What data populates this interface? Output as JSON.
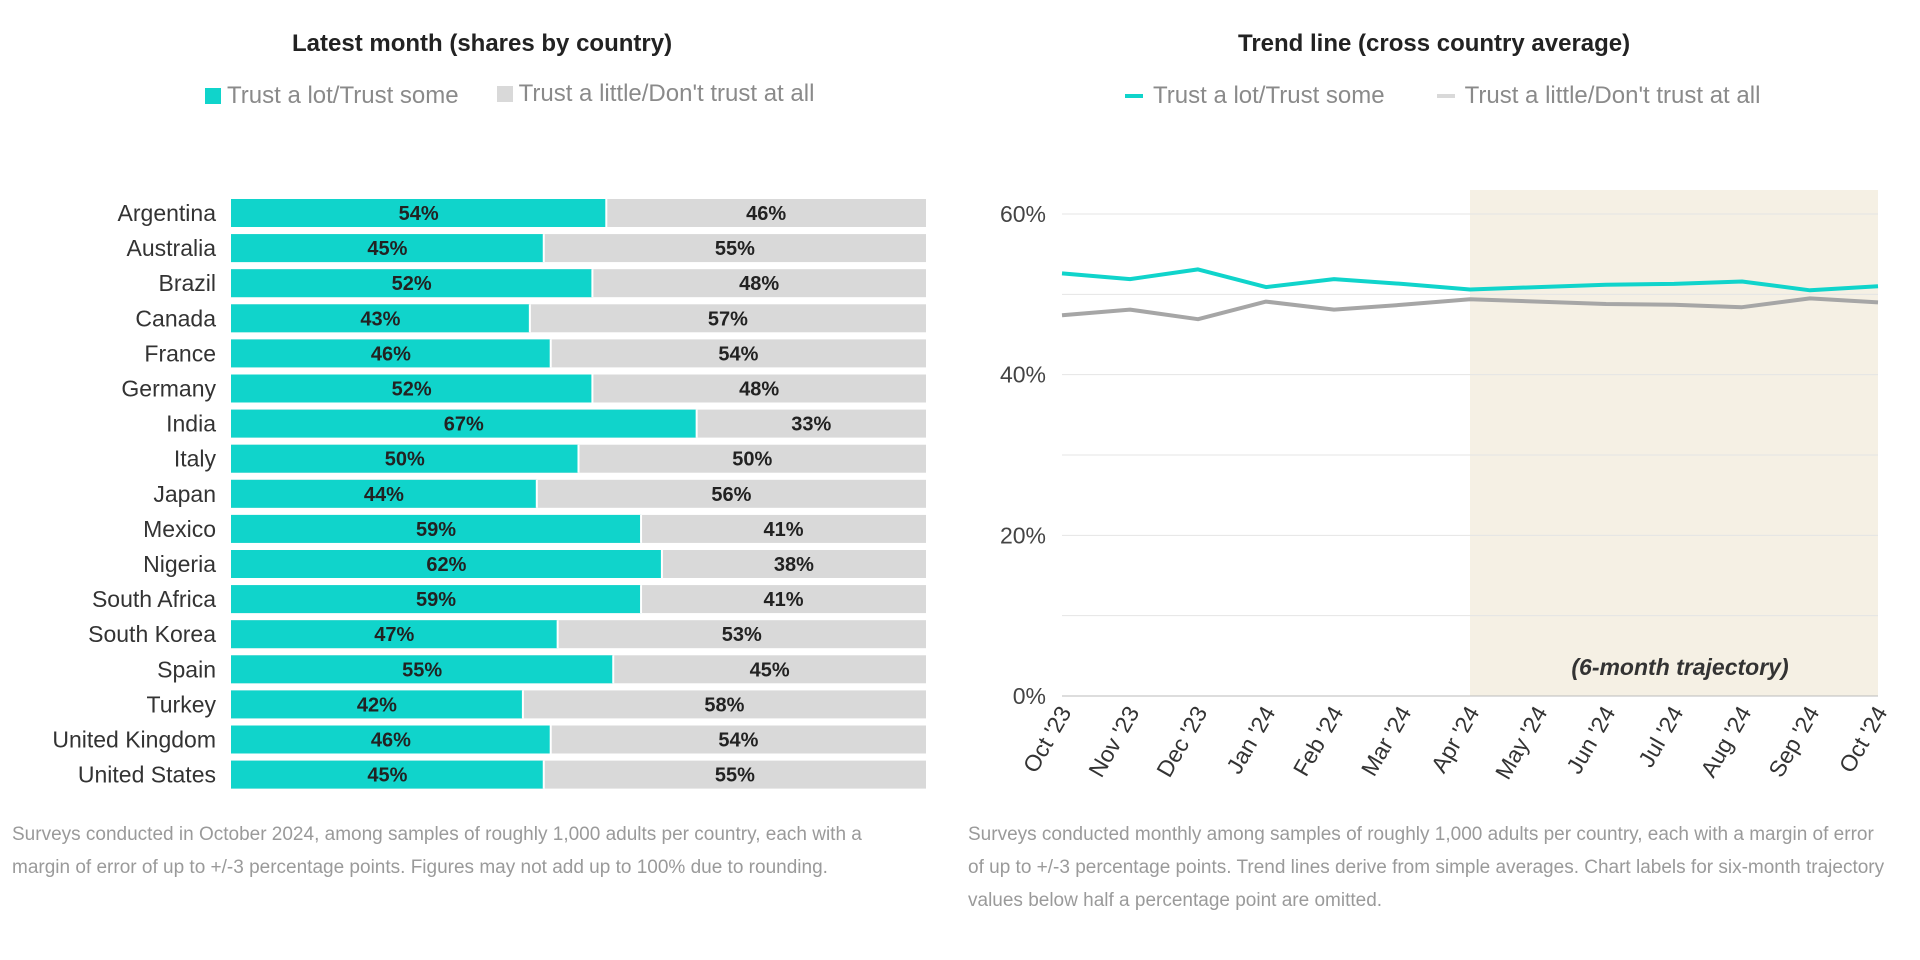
{
  "colors": {
    "trust": "#10d4cb",
    "distrust": "#d9d9d9",
    "distrust_line": "#a6a6a6",
    "highlight": "#f5f0e4"
  },
  "left": {
    "title": "Latest month (shares by country)",
    "legend": [
      "Trust a lot/Trust some",
      "Trust a little/Don't trust at all"
    ],
    "note": "Surveys conducted in October 2024, among samples of roughly 1,000 adults per country, each with a margin of error of up to +/-3 percentage points. Figures may not add up to 100% due to rounding."
  },
  "right": {
    "title": "Trend line (cross country average)",
    "legend": [
      "Trust a lot/Trust some",
      "Trust a little/Don't trust at all"
    ],
    "annotation": "(6-month trajectory)",
    "note": "Surveys conducted monthly among samples of roughly 1,000 adults per country, each with a margin of error of up to +/-3 percentage points. Trend lines derive from simple averages. Chart labels for six-month trajectory values below half a percentage point are omitted."
  },
  "chart_data": [
    {
      "type": "bar",
      "stacked": true,
      "orientation": "horizontal",
      "title": "Latest month (shares by country)",
      "categories": [
        "Argentina",
        "Australia",
        "Brazil",
        "Canada",
        "France",
        "Germany",
        "India",
        "Italy",
        "Japan",
        "Mexico",
        "Nigeria",
        "South Africa",
        "South Korea",
        "Spain",
        "Turkey",
        "United Kingdom",
        "United States"
      ],
      "series": [
        {
          "name": "Trust a lot/Trust some",
          "values": [
            54,
            45,
            52,
            43,
            46,
            52,
            67,
            50,
            44,
            59,
            62,
            59,
            47,
            55,
            42,
            46,
            45
          ]
        },
        {
          "name": "Trust a little/Don't trust at all",
          "values": [
            46,
            55,
            48,
            57,
            54,
            48,
            33,
            50,
            56,
            41,
            38,
            41,
            53,
            45,
            58,
            54,
            55
          ]
        }
      ],
      "data_label_suffix": "%"
    },
    {
      "type": "line",
      "title": "Trend line (cross country average)",
      "x": [
        "Oct '23",
        "Nov '23",
        "Dec '23",
        "Jan '24",
        "Feb '24",
        "Mar '24",
        "Apr '24",
        "May '24",
        "Jun '24",
        "Jul '24",
        "Aug '24",
        "Sep '24",
        "Oct '24"
      ],
      "series": [
        {
          "name": "Trust a lot/Trust some",
          "values": [
            52.6,
            51.9,
            53.1,
            50.9,
            51.9,
            51.3,
            50.6,
            50.9,
            51.2,
            51.3,
            51.6,
            50.5,
            51.0
          ]
        },
        {
          "name": "Trust a little/Don't trust at all",
          "values": [
            47.4,
            48.1,
            46.9,
            49.1,
            48.1,
            48.7,
            49.4,
            49.1,
            48.8,
            48.7,
            48.4,
            49.5,
            49.0
          ]
        }
      ],
      "ylim": [
        0,
        60
      ],
      "yticks": [
        0,
        20,
        40,
        60
      ],
      "ytick_labels": [
        "0%",
        "20%",
        "40%",
        "60%"
      ],
      "grid": true,
      "highlight_range": [
        "Apr '24",
        "Oct '24"
      ]
    }
  ]
}
